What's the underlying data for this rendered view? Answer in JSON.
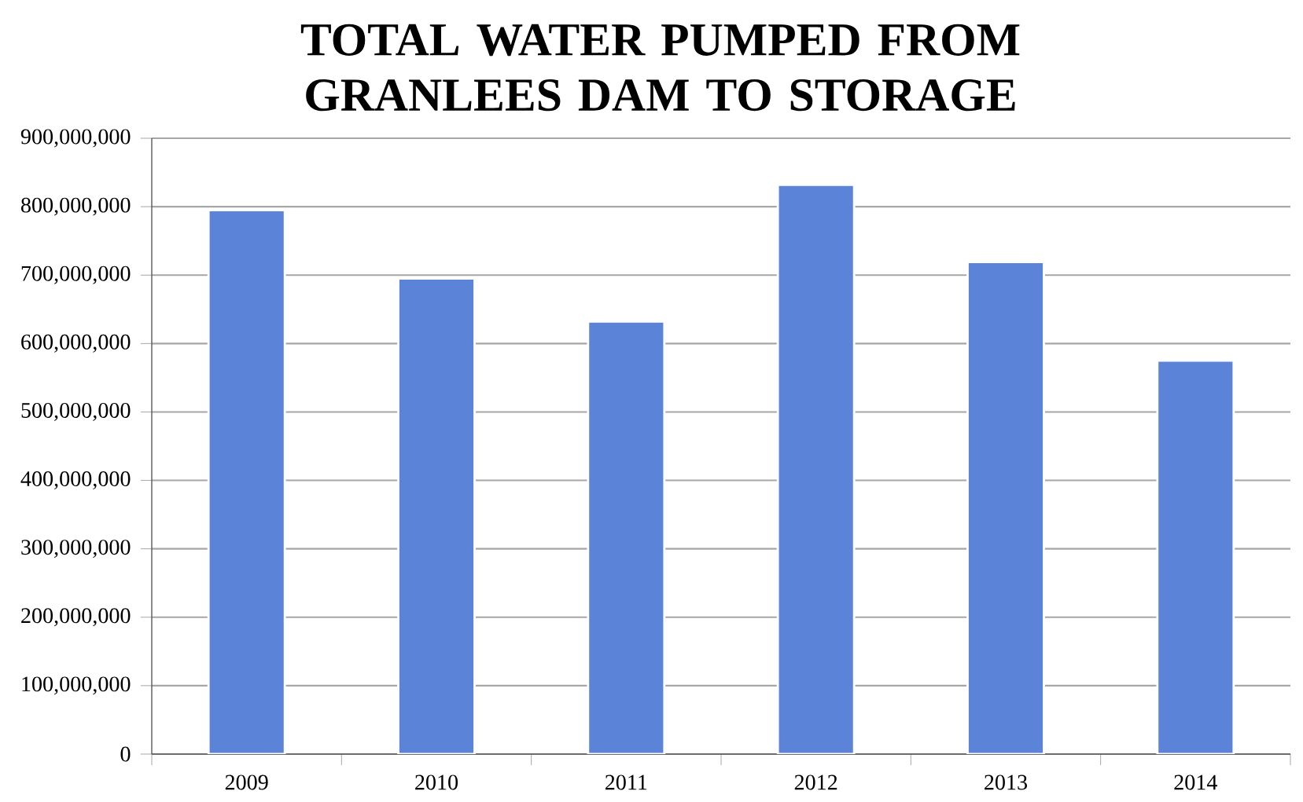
{
  "chart_data": {
    "type": "bar",
    "title": "TOTAL WATER PUMPED FROM GRANLEES DAM TO STORAGE",
    "categories": [
      "2009",
      "2010",
      "2011",
      "2012",
      "2013",
      "2014"
    ],
    "values": [
      795000000,
      695000000,
      632000000,
      832000000,
      719000000,
      575000000
    ],
    "color": "#5b84d8",
    "grid": "y",
    "ylim": [
      0,
      900000000
    ],
    "yticks": [
      {
        "value": 0,
        "label": "0"
      },
      {
        "value": 100000000,
        "label": "100,000,000"
      },
      {
        "value": 200000000,
        "label": "200,000,000"
      },
      {
        "value": 300000000,
        "label": "300,000,000"
      },
      {
        "value": 400000000,
        "label": "400,000,000"
      },
      {
        "value": 500000000,
        "label": "500,000,000"
      },
      {
        "value": 600000000,
        "label": "600,000,000"
      },
      {
        "value": 700000000,
        "label": "700,000,000"
      },
      {
        "value": 800000000,
        "label": "800,000,000"
      },
      {
        "value": 900000000,
        "label": "900,000,000"
      }
    ]
  }
}
